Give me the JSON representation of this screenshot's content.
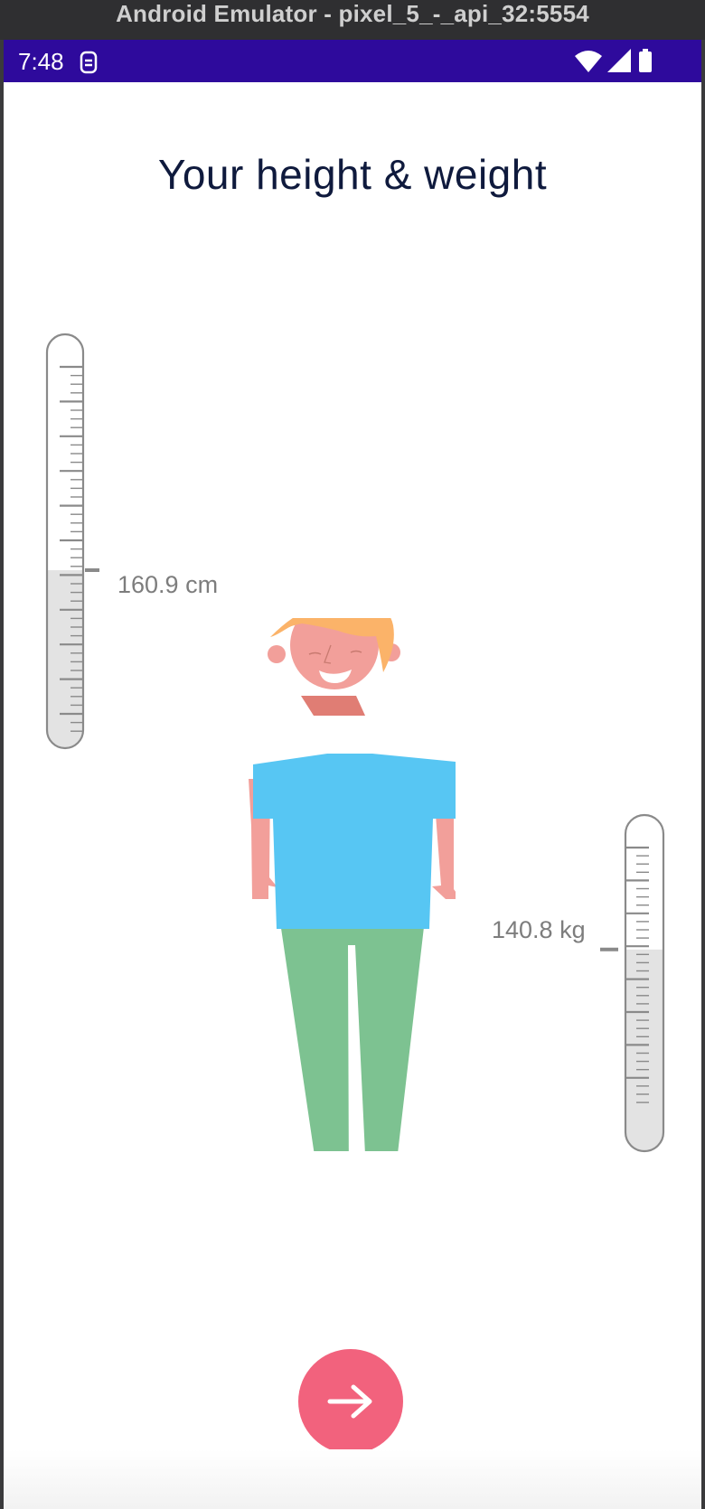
{
  "window": {
    "title": "Android Emulator - pixel_5_-_api_32:5554"
  },
  "status_bar": {
    "time": "7:48"
  },
  "page": {
    "title": "Your height & weight"
  },
  "height_gauge": {
    "value_label": "160.9 cm",
    "fill_fraction": 0.43
  },
  "weight_gauge": {
    "value_label": "140.8 kg",
    "fill_fraction": 0.6
  },
  "icons": {
    "sim": "sim-card-icon",
    "wifi": "wifi-icon",
    "signal": "cell-signal-icon",
    "battery": "battery-icon",
    "next": "arrow-right-icon"
  },
  "colors": {
    "status_bar": "#2e0a9c",
    "title": "#0f1a3d",
    "next_button": "#f2627d",
    "shirt": "#57c6f3",
    "pants": "#7dc291",
    "hair": "#fbb369",
    "skin": "#f29f9a"
  }
}
